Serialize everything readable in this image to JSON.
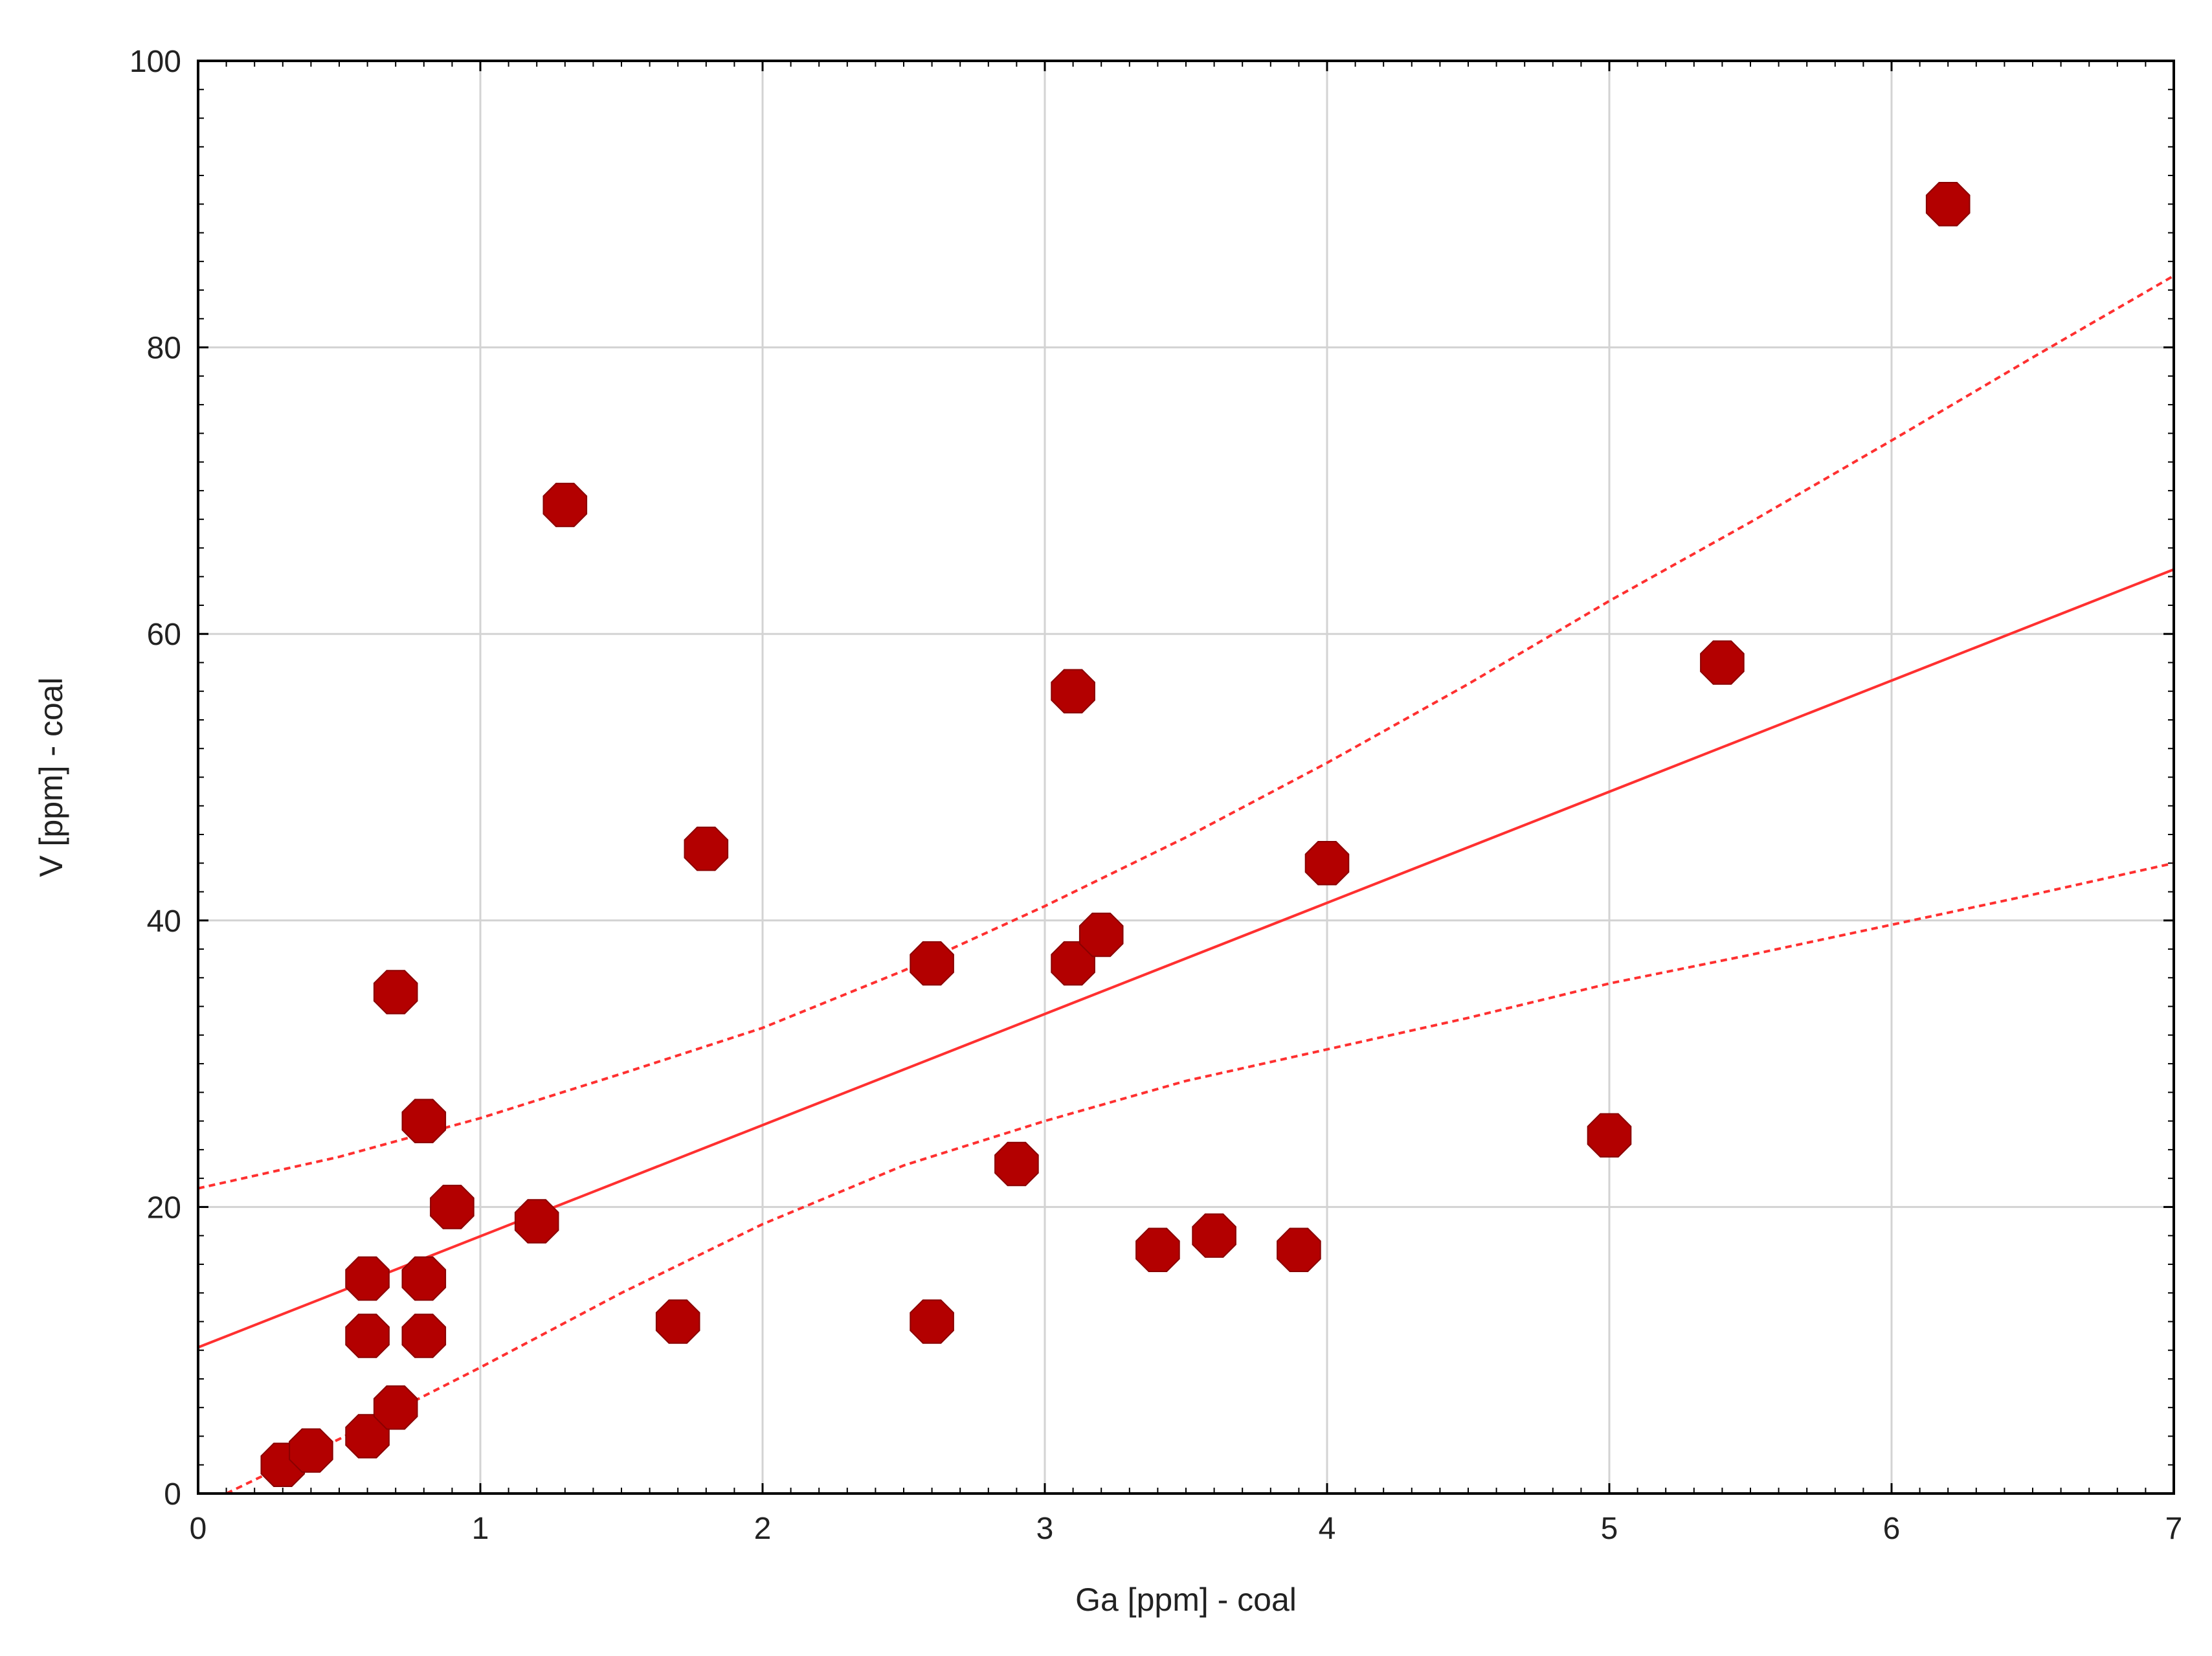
{
  "chart_data": {
    "type": "scatter",
    "title": "",
    "xlabel": "Ga [ppm] - coal",
    "ylabel": "V [ppm] - coal",
    "xlim": [
      0,
      7
    ],
    "ylim": [
      0,
      100
    ],
    "x_ticks": [
      0,
      1,
      2,
      3,
      4,
      5,
      6,
      7
    ],
    "y_ticks": [
      0,
      20,
      40,
      60,
      80,
      100
    ],
    "grid": true,
    "legend": "none",
    "colors": {
      "points": "#b30000",
      "fit": "#ff3030",
      "grid": "#d3d3d3",
      "axis": "#000000"
    },
    "points": [
      {
        "x": 0.3,
        "y": 2
      },
      {
        "x": 0.4,
        "y": 3
      },
      {
        "x": 0.6,
        "y": 4
      },
      {
        "x": 0.7,
        "y": 6
      },
      {
        "x": 0.6,
        "y": 11
      },
      {
        "x": 0.8,
        "y": 11
      },
      {
        "x": 0.6,
        "y": 15
      },
      {
        "x": 0.8,
        "y": 15
      },
      {
        "x": 0.9,
        "y": 20
      },
      {
        "x": 0.8,
        "y": 26
      },
      {
        "x": 0.7,
        "y": 35
      },
      {
        "x": 1.2,
        "y": 19
      },
      {
        "x": 1.3,
        "y": 69
      },
      {
        "x": 1.7,
        "y": 12
      },
      {
        "x": 1.8,
        "y": 45
      },
      {
        "x": 2.6,
        "y": 12
      },
      {
        "x": 2.6,
        "y": 37
      },
      {
        "x": 2.9,
        "y": 23
      },
      {
        "x": 3.1,
        "y": 37
      },
      {
        "x": 3.1,
        "y": 56
      },
      {
        "x": 3.2,
        "y": 39
      },
      {
        "x": 3.4,
        "y": 17
      },
      {
        "x": 3.6,
        "y": 18
      },
      {
        "x": 3.9,
        "y": 17
      },
      {
        "x": 4.0,
        "y": 44
      },
      {
        "x": 5.0,
        "y": 25
      },
      {
        "x": 5.4,
        "y": 58
      },
      {
        "x": 6.2,
        "y": 90
      }
    ],
    "fit_line": {
      "x": [
        0,
        7
      ],
      "y": [
        10.2,
        64.5
      ]
    },
    "confidence_upper": {
      "x": [
        0,
        0.5,
        1,
        1.5,
        2,
        2.5,
        3,
        3.5,
        4,
        4.5,
        5,
        5.5,
        6,
        6.5,
        7
      ],
      "y": [
        21.3,
        23.5,
        26.2,
        29.3,
        32.5,
        36.5,
        41.0,
        45.8,
        51.0,
        56.5,
        62.3,
        67.8,
        73.5,
        79.3,
        85.0
      ]
    },
    "confidence_lower": {
      "x": [
        0.1,
        0.5,
        1,
        1.5,
        2,
        2.5,
        3,
        3.5,
        4,
        4.5,
        5,
        5.5,
        6,
        6.5,
        7
      ],
      "y": [
        0,
        3.8,
        8.8,
        14.0,
        18.8,
        22.9,
        26.0,
        28.8,
        31.0,
        33.2,
        35.6,
        37.6,
        39.7,
        41.8,
        44.0
      ]
    }
  }
}
